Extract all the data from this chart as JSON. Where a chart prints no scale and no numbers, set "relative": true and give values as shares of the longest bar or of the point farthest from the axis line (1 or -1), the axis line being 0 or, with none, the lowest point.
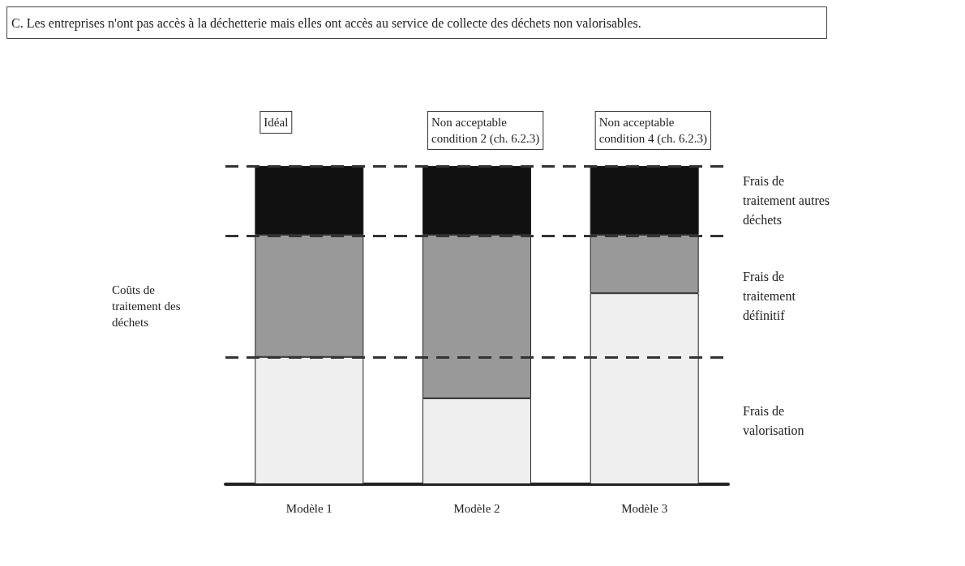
{
  "chart_data": {
    "type": "bar",
    "stacked": true,
    "relative": true,
    "title": "C. Les entreprises n'ont pas accès à la déchetterie mais elles ont accès au service de collecte des déchets non valorisables.",
    "ylabel": "Coûts de traitement des déchets",
    "categories": [
      "Modèle 1",
      "Modèle 2",
      "Modèle 3"
    ],
    "series": [
      {
        "name": "Frais de valorisation",
        "color": "#efefef",
        "values": [
          0.4,
          0.27,
          0.6
        ]
      },
      {
        "name": "Frais de traitement définitif",
        "color": "#999999",
        "values": [
          0.384,
          0.514,
          0.184
        ]
      },
      {
        "name": "Frais de traitement autres déchets",
        "color": "#111111",
        "values": [
          0.216,
          0.216,
          0.216
        ]
      }
    ],
    "ref_lines": [
      {
        "axis": "y",
        "value": 0.4,
        "line_style": "dashed"
      },
      {
        "axis": "y",
        "value": 0.784,
        "line_style": "dashed"
      },
      {
        "axis": "y",
        "value": 1,
        "line_style": "dashed"
      }
    ],
    "annotations": [
      "Idéal",
      "Non acceptable\ncondition 2 (ch. 6.2.3)",
      "Non acceptable\ncondition 4 (ch. 6.2.3)"
    ],
    "legend": false
  }
}
